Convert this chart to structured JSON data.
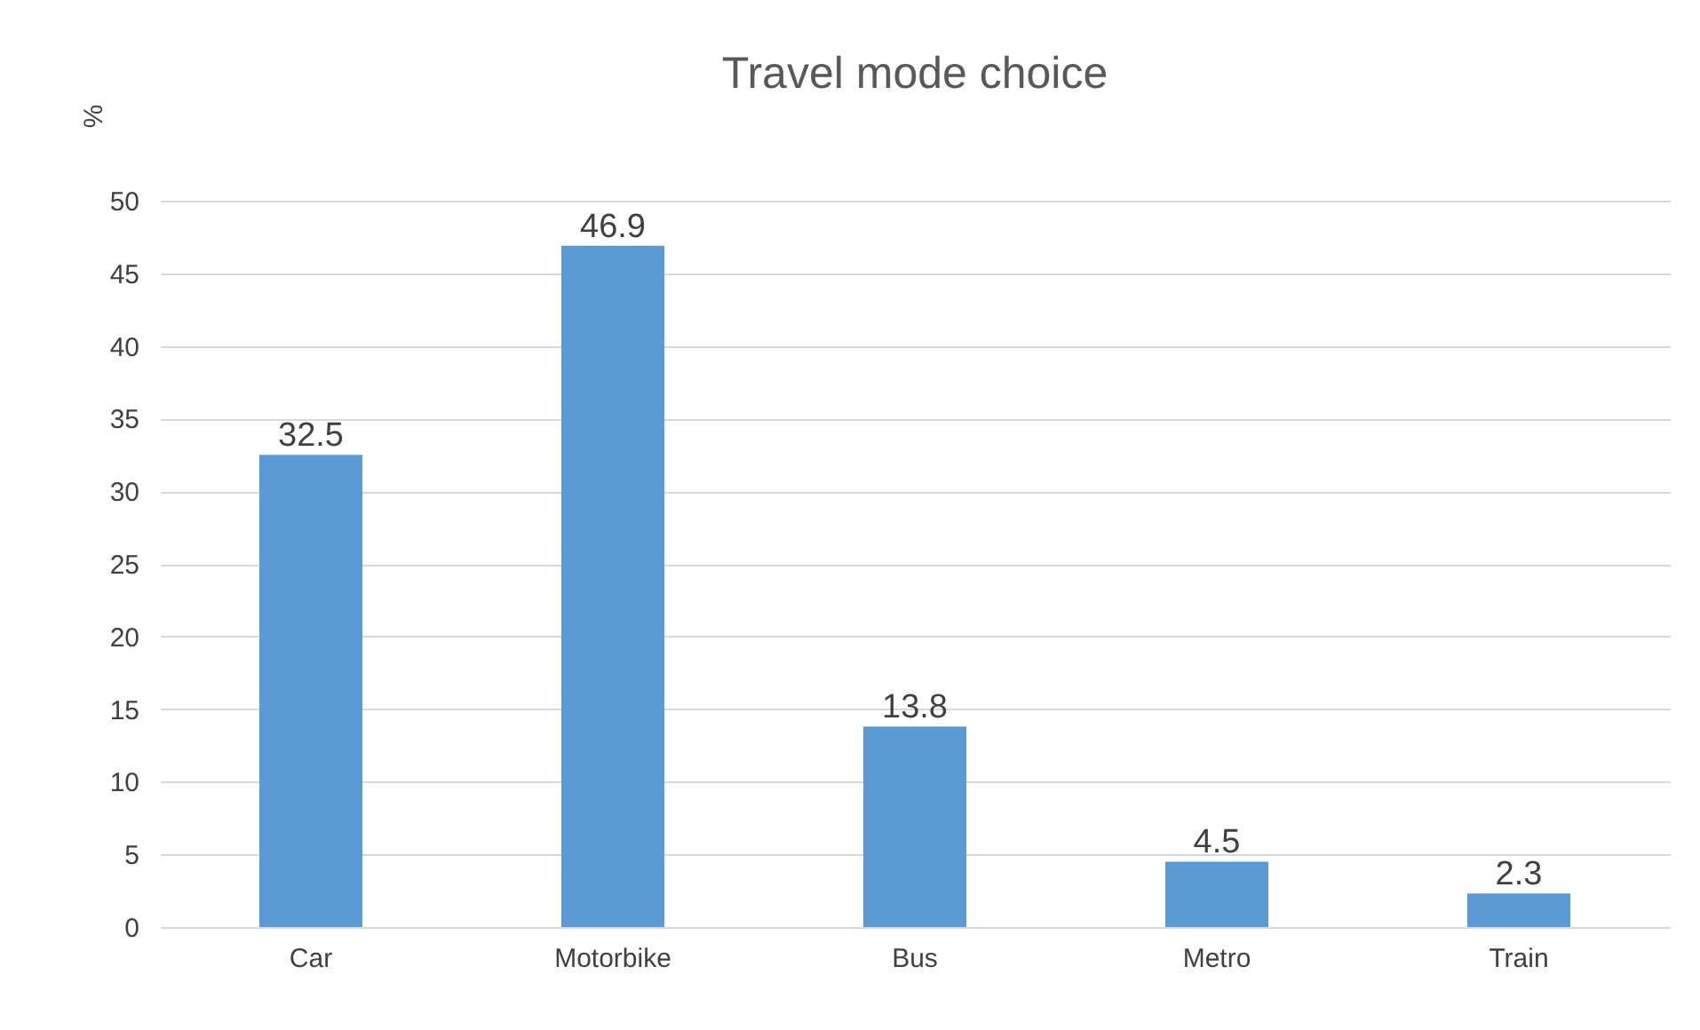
{
  "chart_data": {
    "type": "bar",
    "title": "Travel mode choice",
    "ylabel": "%",
    "categories": [
      "Car",
      "Motorbike",
      "Bus",
      "Metro",
      "Train"
    ],
    "values": [
      32.5,
      46.9,
      13.8,
      4.5,
      2.3
    ],
    "color": "#5b9bd5",
    "ylim": [
      0,
      50
    ],
    "yticks": [
      0,
      5,
      10,
      15,
      20,
      25,
      30,
      35,
      40,
      45,
      50
    ],
    "grid": "y",
    "data_labels": true
  }
}
